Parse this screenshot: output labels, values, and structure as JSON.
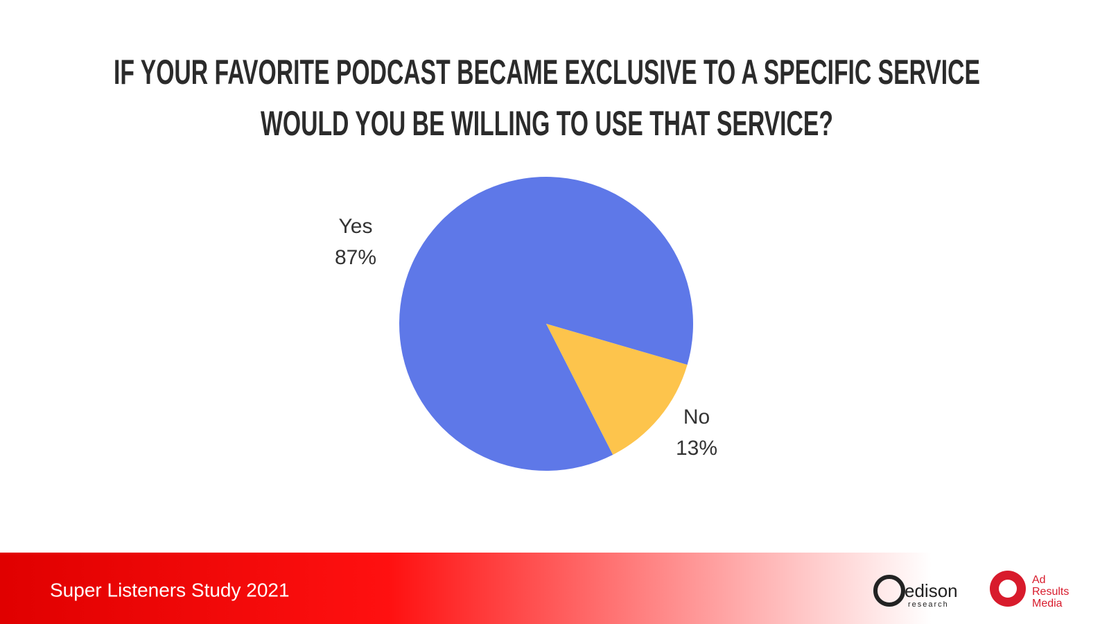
{
  "chart_data": {
    "type": "pie",
    "title_lines": [
      "IF YOUR FAVORITE PODCAST BECAME EXCLUSIVE TO A SPECIFIC SERVICE",
      "WOULD YOU BE WILLING TO USE THAT SERVICE?"
    ],
    "categories": [
      "Yes",
      "No"
    ],
    "values": [
      87,
      13
    ],
    "value_labels": [
      "87%",
      "13%"
    ],
    "colors": [
      "#5e78e8",
      "#fdc44c"
    ]
  },
  "footer": {
    "text": "Super Listeners Study 2021",
    "logo_edison": [
      "edison",
      "research"
    ],
    "logo_arm": [
      "Ad",
      "Results",
      "Media"
    ]
  }
}
